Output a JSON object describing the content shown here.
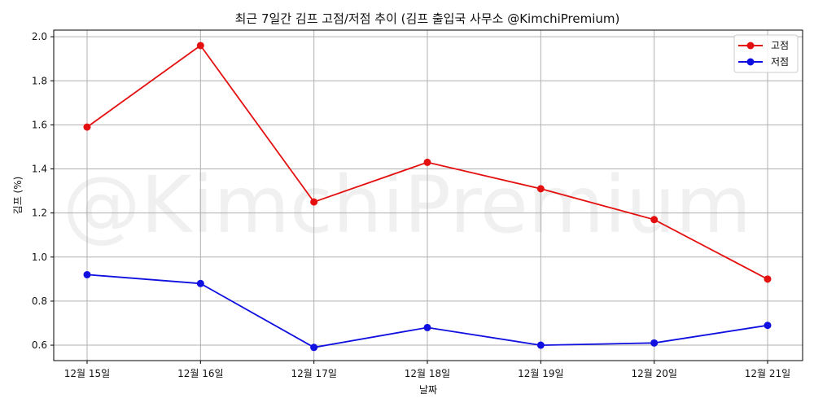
{
  "chart_data": {
    "type": "line",
    "title": "최근 7일간 김프 고점/저점 추이 (김프 출입국 사무소 @KimchiPremium)",
    "xlabel": "날짜",
    "ylabel": "김프 (%)",
    "watermark": "@KimchiPremium",
    "categories": [
      "12월 15일",
      "12월 16일",
      "12월 17일",
      "12월 18일",
      "12월 19일",
      "12월 20일",
      "12월 21일"
    ],
    "ylim": [
      0.53,
      2.03
    ],
    "yticks": [
      "0.6",
      "0.8",
      "1.0",
      "1.2",
      "1.4",
      "1.6",
      "1.8",
      "2.0"
    ],
    "grid": true,
    "legend_position": "top-right",
    "series": [
      {
        "name": "고점",
        "color": "#e41010",
        "values": [
          1.59,
          1.96,
          1.25,
          1.43,
          1.31,
          1.17,
          0.9
        ]
      },
      {
        "name": "저점",
        "color": "#1010e0",
        "values": [
          0.92,
          0.88,
          0.59,
          0.68,
          0.6,
          0.61,
          0.69
        ]
      }
    ]
  }
}
